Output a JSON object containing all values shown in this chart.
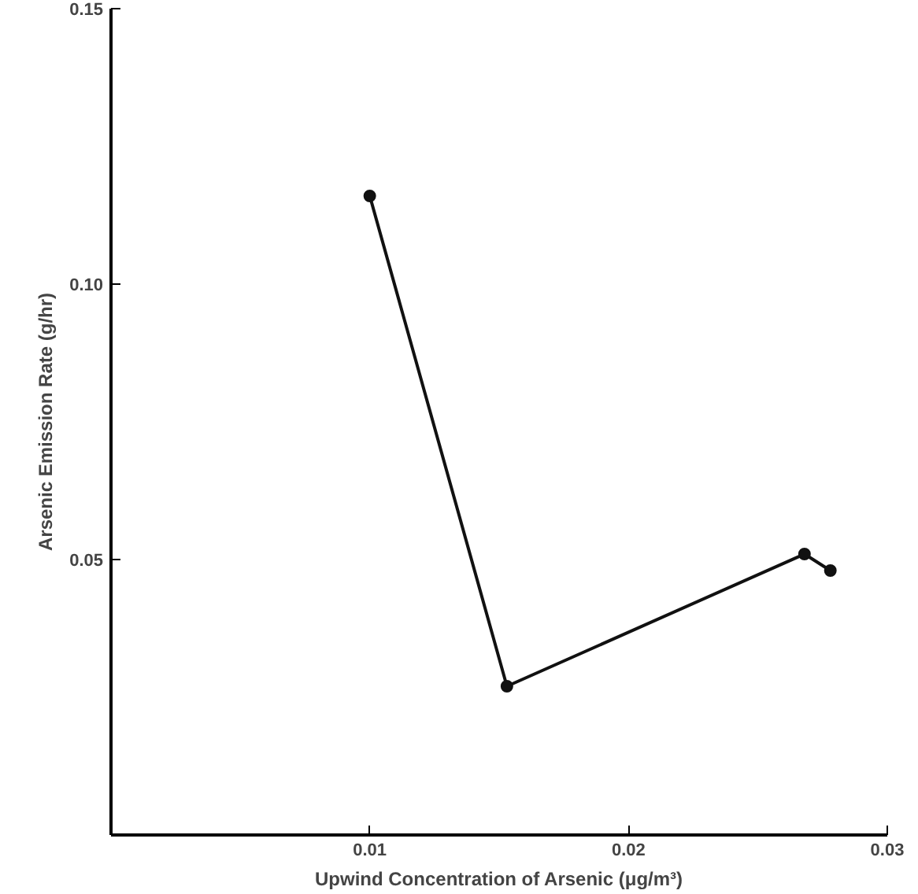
{
  "chart_data": {
    "type": "line",
    "xlabel": "Upwind Concentration of Arsenic (μg/m³)",
    "ylabel": "Arsenic Emission Rate (g/hr)",
    "x": [
      0.01,
      0.0153,
      0.0268,
      0.0278
    ],
    "series": [
      {
        "color": "#111111",
        "values": [
          0.116,
          0.027,
          0.051,
          0.048
        ]
      }
    ],
    "xlim": [
      0,
      0.03
    ],
    "ylim": [
      0,
      0.15
    ],
    "xticks": [
      0.01,
      0.02,
      0.03
    ],
    "yticks": [
      0.05,
      {
        "value": 0.1,
        "label": "0.10"
      },
      0.15
    ],
    "marker": "circle",
    "line_style": "solid",
    "grid": false
  }
}
